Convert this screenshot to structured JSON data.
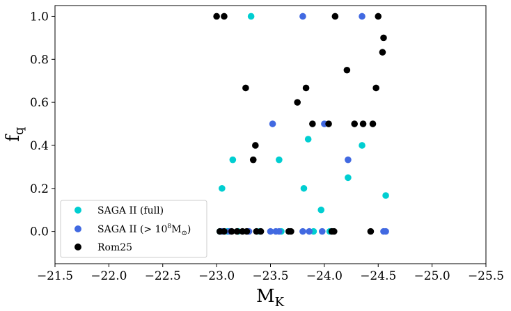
{
  "chart_data": {
    "type": "scatter",
    "xlabel": "M",
    "xlabel_sub": "K",
    "ylabel": "f",
    "ylabel_sub": "q",
    "xlim": [
      -21.5,
      -25.5
    ],
    "ylim": [
      -0.15,
      1.05
    ],
    "xticks": [
      -21.5,
      -22.0,
      -22.5,
      -23.0,
      -23.5,
      -24.0,
      -24.5,
      -25.0,
      -25.5
    ],
    "xtick_labels": [
      "−21.5",
      "−22.0",
      "−22.5",
      "−23.0",
      "−23.5",
      "−24.0",
      "−24.5",
      "−25.0",
      "−25.5"
    ],
    "yticks": [
      0.0,
      0.2,
      0.4,
      0.6,
      0.8,
      1.0
    ],
    "ytick_labels": [
      "0.0",
      "0.2",
      "0.4",
      "0.6",
      "0.8",
      "1.0"
    ],
    "grid": false,
    "legend_position": "lower-left",
    "series": [
      {
        "name": "SAGA II (full)",
        "color": "#00CED1",
        "points": [
          [
            -23.32,
            1.0
          ],
          [
            -23.05,
            0.2
          ],
          [
            -23.15,
            0.333
          ],
          [
            -23.58,
            0.333
          ],
          [
            -23.81,
            0.2
          ],
          [
            -23.85,
            0.429
          ],
          [
            -23.97,
            0.1
          ],
          [
            -24.22,
            0.25
          ],
          [
            -24.35,
            0.4
          ],
          [
            -24.57,
            0.167
          ],
          [
            -23.03,
            0.0
          ],
          [
            -23.1,
            0.0
          ],
          [
            -23.2,
            0.0
          ],
          [
            -23.4,
            0.0
          ],
          [
            -23.6,
            0.0
          ],
          [
            -23.9,
            0.0
          ],
          [
            -24.05,
            0.0
          ]
        ]
      },
      {
        "name": "SAGA II (> 10⁸M⊙)",
        "legend_label_main": "SAGA II (> 10",
        "legend_label_sup": "8",
        "legend_label_tail": "M",
        "legend_label_sub": "⊙",
        "legend_label_close": ")",
        "color": "#4169E1",
        "points": [
          [
            -23.8,
            1.0
          ],
          [
            -24.35,
            1.0
          ],
          [
            -23.52,
            0.5
          ],
          [
            -24.0,
            0.5
          ],
          [
            -24.22,
            0.333
          ],
          [
            -23.05,
            0.0
          ],
          [
            -23.12,
            0.0
          ],
          [
            -23.3,
            0.0
          ],
          [
            -23.5,
            0.0
          ],
          [
            -23.55,
            0.0
          ],
          [
            -23.58,
            0.0
          ],
          [
            -23.8,
            0.0
          ],
          [
            -23.86,
            0.0
          ],
          [
            -23.98,
            0.0
          ],
          [
            -24.55,
            0.0
          ],
          [
            -24.57,
            0.0
          ]
        ]
      },
      {
        "name": "Rom25",
        "color": "#000000",
        "points": [
          [
            -23.0,
            1.0
          ],
          [
            -23.07,
            1.0
          ],
          [
            -24.1,
            1.0
          ],
          [
            -24.5,
            1.0
          ],
          [
            -24.55,
            0.9
          ],
          [
            -24.54,
            0.833
          ],
          [
            -24.21,
            0.75
          ],
          [
            -23.27,
            0.667
          ],
          [
            -23.83,
            0.667
          ],
          [
            -24.48,
            0.667
          ],
          [
            -23.75,
            0.6
          ],
          [
            -23.89,
            0.5
          ],
          [
            -24.04,
            0.5
          ],
          [
            -24.28,
            0.5
          ],
          [
            -24.36,
            0.5
          ],
          [
            -24.45,
            0.5
          ],
          [
            -23.36,
            0.4
          ],
          [
            -23.34,
            0.333
          ],
          [
            -23.03,
            0.0
          ],
          [
            -23.07,
            0.0
          ],
          [
            -23.14,
            0.0
          ],
          [
            -23.19,
            0.0
          ],
          [
            -23.24,
            0.0
          ],
          [
            -23.28,
            0.0
          ],
          [
            -23.37,
            0.0
          ],
          [
            -23.41,
            0.0
          ],
          [
            -23.67,
            0.0
          ],
          [
            -23.69,
            0.0
          ],
          [
            -24.07,
            0.0
          ],
          [
            -24.09,
            0.0
          ],
          [
            -24.43,
            0.0
          ]
        ]
      }
    ]
  }
}
